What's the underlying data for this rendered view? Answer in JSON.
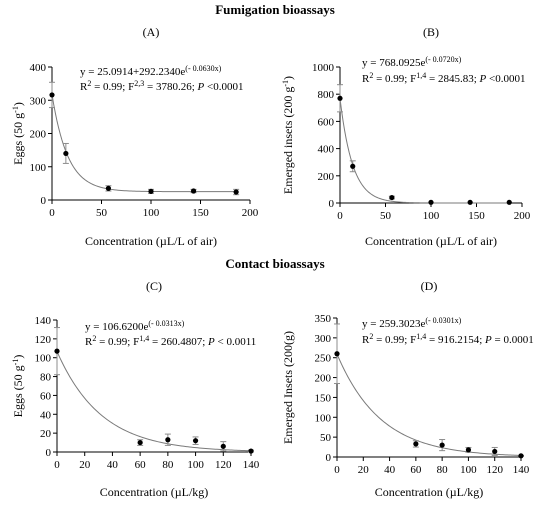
{
  "sections": {
    "fumigation": "Fumigation bioassays",
    "contact": "Contact bioassays"
  },
  "colors": {
    "curve": "#7a7a7a",
    "point": "#000000",
    "error_bar": "#8c8c8c",
    "axis": "#000000"
  },
  "chart_data": [
    {
      "type": "scatter",
      "panel": "(A)",
      "xlabel": "Concentration (µL/L of air)",
      "ylabel": "Eggs (50 g",
      "ylabel_sup": "-1",
      "ylabel_end": ")",
      "xlim": [
        0,
        200
      ],
      "ylim": [
        0,
        400
      ],
      "xticks": [
        0,
        50,
        100,
        150,
        200
      ],
      "yticks": [
        0,
        100,
        200,
        300,
        400
      ],
      "equation": "y = 25.0914+292.2340e",
      "equation_sup": "(- 0.0630x)",
      "stats_pre": "R",
      "stats_r2sup": "2",
      "stats_mid": " = 0.99; F",
      "stats_fsup": "2,3",
      "stats_post": " = 3780.26; ",
      "stats_p": "P",
      "stats_end": " <0.0001",
      "model": {
        "a": 25.0914,
        "b": 292.234,
        "k": 0.063
      },
      "points": [
        {
          "x": 0,
          "y": 316,
          "err": 38
        },
        {
          "x": 14,
          "y": 140,
          "err": 30
        },
        {
          "x": 57,
          "y": 35,
          "err": 8
        },
        {
          "x": 100,
          "y": 26,
          "err": 6
        },
        {
          "x": 143,
          "y": 27,
          "err": 5
        },
        {
          "x": 186,
          "y": 24,
          "err": 8
        }
      ]
    },
    {
      "type": "scatter",
      "panel": "(B)",
      "xlabel": "Concentration (µL/L of air)",
      "ylabel": "Emerged insets (200 g",
      "ylabel_sup": "-1",
      "ylabel_end": ")",
      "xlim": [
        0,
        200
      ],
      "ylim": [
        0,
        1000
      ],
      "xticks": [
        0,
        50,
        100,
        150,
        200
      ],
      "yticks": [
        0,
        200,
        400,
        600,
        800,
        1000
      ],
      "equation": "y = 768.0925e",
      "equation_sup": "(- 0.0720x)",
      "stats_pre": "R",
      "stats_r2sup": "2",
      "stats_mid": " = 0.99; F",
      "stats_fsup": "1,4",
      "stats_post": " = 2845.83; ",
      "stats_p": "P",
      "stats_end": " <0.0001",
      "model": {
        "a": 0,
        "b": 768.0925,
        "k": 0.072
      },
      "points": [
        {
          "x": 0,
          "y": 770,
          "err": 100
        },
        {
          "x": 14,
          "y": 270,
          "err": 40
        },
        {
          "x": 57,
          "y": 40,
          "err": 10
        },
        {
          "x": 100,
          "y": 5,
          "err": 0
        },
        {
          "x": 143,
          "y": 5,
          "err": 0
        },
        {
          "x": 186,
          "y": 5,
          "err": 0
        }
      ]
    },
    {
      "type": "scatter",
      "panel": "(C)",
      "xlabel": "Concentration (µL/kg)",
      "ylabel": "Eggs (50 g",
      "ylabel_sup": "-1",
      "ylabel_end": ")",
      "xlim": [
        0,
        140
      ],
      "ylim": [
        0,
        140
      ],
      "xticks": [
        0,
        20,
        40,
        60,
        80,
        100,
        120,
        140
      ],
      "yticks": [
        0,
        20,
        40,
        60,
        80,
        100,
        120,
        140
      ],
      "equation": "y = 106.6200e",
      "equation_sup": "(- 0.0313x)",
      "stats_pre": "R",
      "stats_r2sup": "2",
      "stats_mid": " = 0.99; F",
      "stats_fsup": "1,4",
      "stats_post": " = 260.4807; ",
      "stats_p": "P",
      "stats_end": " < 0.0011",
      "model": {
        "a": 0,
        "b": 106.62,
        "k": 0.0313
      },
      "points": [
        {
          "x": 0,
          "y": 107,
          "err": 25
        },
        {
          "x": 60,
          "y": 10,
          "err": 3
        },
        {
          "x": 80,
          "y": 13,
          "err": 6
        },
        {
          "x": 100,
          "y": 12,
          "err": 4
        },
        {
          "x": 120,
          "y": 6,
          "err": 5
        },
        {
          "x": 140,
          "y": 1,
          "err": 1
        }
      ]
    },
    {
      "type": "scatter",
      "panel": "(D)",
      "xlabel": "Concentration (µL/kg)",
      "ylabel": "Emerged Insets (200(g)",
      "ylabel_sup": "",
      "ylabel_end": "",
      "xlim": [
        0,
        140
      ],
      "ylim": [
        0,
        350
      ],
      "xticks": [
        0,
        20,
        40,
        60,
        80,
        100,
        120,
        140
      ],
      "yticks": [
        0,
        50,
        100,
        150,
        200,
        250,
        300,
        350
      ],
      "equation": "y = 259.3023e",
      "equation_sup": "(- 0.0301x)",
      "stats_pre": "R",
      "stats_r2sup": "2",
      "stats_mid": " = 0.99; F",
      "stats_fsup": "1,4",
      "stats_post": " = 916.2154; ",
      "stats_p": "P",
      "stats_end": " = 0.0001",
      "model": {
        "a": 0,
        "b": 259.3023,
        "k": 0.0301
      },
      "points": [
        {
          "x": 0,
          "y": 260,
          "err": 75
        },
        {
          "x": 60,
          "y": 33,
          "err": 8
        },
        {
          "x": 80,
          "y": 30,
          "err": 14
        },
        {
          "x": 100,
          "y": 18,
          "err": 6
        },
        {
          "x": 120,
          "y": 14,
          "err": 10
        },
        {
          "x": 140,
          "y": 3,
          "err": 1
        }
      ]
    }
  ]
}
